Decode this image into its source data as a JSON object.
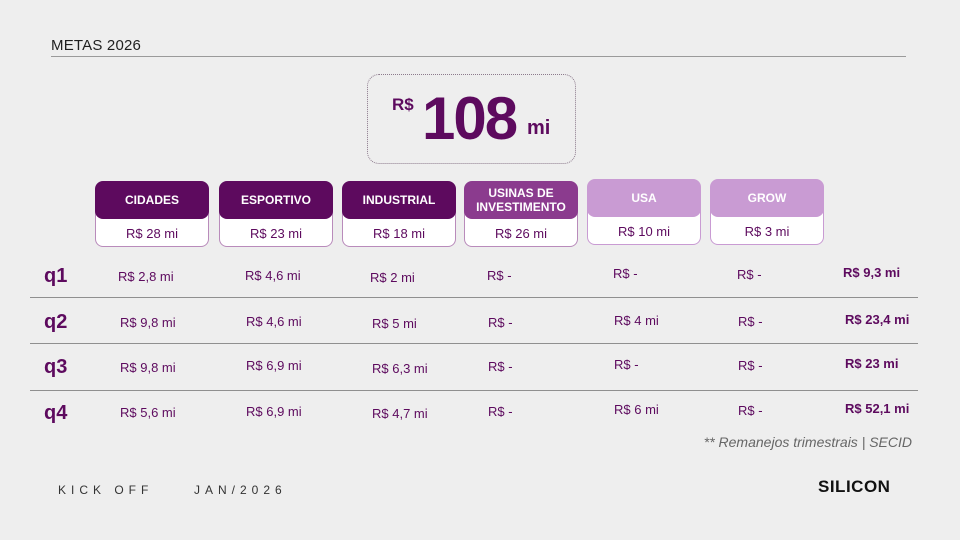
{
  "page": {
    "title": "METAS 2026",
    "total": {
      "prefix": "R$",
      "value": "108",
      "suffix": "mi"
    },
    "segments": [
      {
        "label": "CIDADES",
        "value": "R$ 28 mi",
        "style": "dark"
      },
      {
        "label": "ESPORTIVO",
        "value": "R$ 23 mi",
        "style": "dark"
      },
      {
        "label": "INDUSTRIAL",
        "value": "R$ 18 mi",
        "style": "dark"
      },
      {
        "label": "USINAS DE INVESTIMENTO",
        "value": "R$ 26 mi",
        "style": "mid"
      },
      {
        "label": "USA",
        "value": "R$ 10 mi",
        "style": "light"
      },
      {
        "label": "GROW",
        "value": "R$ 3 mi",
        "style": "light"
      }
    ],
    "quarters": [
      {
        "label": "q1",
        "cells": [
          "R$ 2,8 mi",
          "R$ 4,6 mi",
          "R$ 2 mi",
          "R$ -",
          "R$ -",
          "R$ -"
        ],
        "total": "R$ 9,3 mi"
      },
      {
        "label": "q2",
        "cells": [
          "R$ 9,8 mi",
          "R$ 4,6 mi",
          "R$ 5 mi",
          "R$ -",
          "R$ 4 mi",
          "R$ -"
        ],
        "total": "R$ 23,4 mi"
      },
      {
        "label": "q3",
        "cells": [
          "R$ 9,8 mi",
          "R$ 6,9 mi",
          "R$ 6,3 mi",
          "R$ -",
          "R$ -",
          "R$ -"
        ],
        "total": "R$ 23 mi"
      },
      {
        "label": "q4",
        "cells": [
          "R$ 5,6 mi",
          "R$ 6,9 mi",
          "R$ 4,7 mi",
          "R$ -",
          "R$ 6 mi",
          "R$ -"
        ],
        "total": "R$ 52,1 mi"
      }
    ],
    "note": "** Remanejos trimestrais | SECID",
    "footer": {
      "event": "KICK OFF",
      "date": "JAN/2026",
      "brand": "SILICON"
    },
    "colors": {
      "primary": "#5d0a5e",
      "mid": "#8b3b8e",
      "light": "#c99bd3",
      "background": "#eeeeee"
    }
  }
}
